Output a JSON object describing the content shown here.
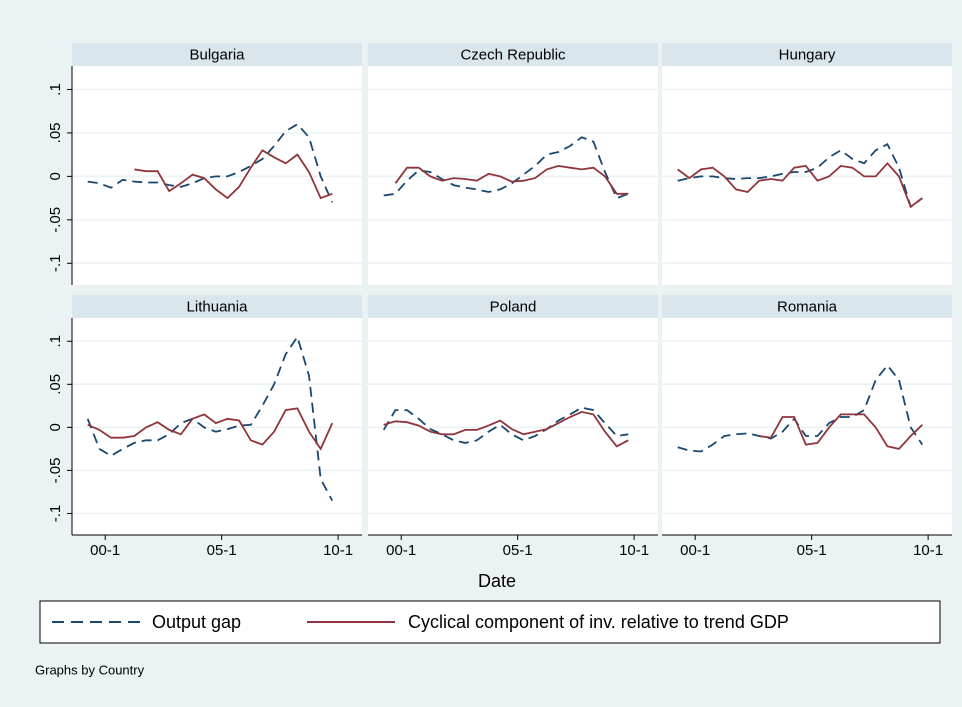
{
  "chart_data": [
    {
      "type": "line",
      "title": "Bulgaria",
      "x": [
        157,
        159,
        161,
        163,
        165,
        167,
        169,
        171,
        173,
        175,
        177,
        179,
        181,
        183,
        185,
        187,
        189,
        191,
        193,
        195,
        197,
        199
      ],
      "xlim": [
        154.3,
        204.1
      ],
      "xticks": [
        {
          "value": 160,
          "label": "00-1"
        },
        {
          "value": 180,
          "label": "05-1"
        },
        {
          "value": 200,
          "label": "10-1"
        }
      ],
      "ylim": [
        -0.125,
        0.127
      ],
      "yticks": [
        {
          "value": -0.1,
          "label": "-.1"
        },
        {
          "value": -0.05,
          "label": "-.05"
        },
        0,
        {
          "value": 0.05,
          "label": ".05"
        },
        {
          "value": 0.1,
          "label": ".1"
        }
      ],
      "grid": true,
      "series": [
        {
          "name": "Output gap",
          "color": "#1a476f",
          "dash": true,
          "values": [
            -0.006,
            -0.008,
            -0.013,
            -0.004,
            -0.006,
            -0.007,
            -0.007,
            -0.01,
            -0.012,
            -0.008,
            -0.002,
            0,
            0,
            0.005,
            0.012,
            0.02,
            0.035,
            0.052,
            0.06,
            0.045,
            0.0,
            -0.03
          ]
        },
        {
          "name": "Cyclical component of inv. relative to trend GDP",
          "color": "#90353b",
          "dash": false,
          "values": [
            null,
            null,
            null,
            null,
            0.008,
            0.006,
            0.006,
            -0.017,
            -0.008,
            0.002,
            -0.002,
            -0.015,
            -0.025,
            -0.012,
            0.01,
            0.03,
            0.022,
            0.015,
            0.025,
            0.005,
            -0.025,
            -0.02
          ]
        }
      ]
    },
    {
      "type": "line",
      "title": "Czech Republic",
      "x": [
        157,
        159,
        161,
        163,
        165,
        167,
        169,
        171,
        173,
        175,
        177,
        179,
        181,
        183,
        185,
        187,
        189,
        191,
        193,
        195,
        197,
        199
      ],
      "xlim": [
        154.3,
        204.1
      ],
      "xticks": [
        {
          "value": 160,
          "label": "00-1"
        },
        {
          "value": 180,
          "label": "05-1"
        },
        {
          "value": 200,
          "label": "10-1"
        }
      ],
      "ylim": [
        -0.125,
        0.127
      ],
      "yticks": [
        {
          "value": -0.1,
          "label": "-.1"
        },
        {
          "value": -0.05,
          "label": "-.05"
        },
        0,
        {
          "value": 0.05,
          "label": ".05"
        },
        {
          "value": 0.1,
          "label": ".1"
        }
      ],
      "grid": true,
      "series": [
        {
          "name": "Output gap",
          "color": "#1a476f",
          "dash": true,
          "values": [
            -0.022,
            -0.02,
            -0.005,
            0.007,
            0.005,
            -0.003,
            -0.01,
            -0.013,
            -0.015,
            -0.018,
            -0.015,
            -0.008,
            0.002,
            0.012,
            0.025,
            0.028,
            0.035,
            0.045,
            0.04,
            0.005,
            -0.025,
            -0.02
          ]
        },
        {
          "name": "Cyclical component of inv. relative to trend GDP",
          "color": "#90353b",
          "dash": false,
          "values": [
            null,
            -0.008,
            0.01,
            0.01,
            0.0,
            -0.005,
            -0.002,
            -0.003,
            -0.005,
            0.003,
            0.0,
            -0.006,
            -0.005,
            -0.002,
            0.008,
            0.012,
            0.01,
            0.008,
            0.01,
            0.0,
            -0.02,
            -0.02
          ]
        }
      ]
    },
    {
      "type": "line",
      "title": "Hungary",
      "x": [
        157,
        159,
        161,
        163,
        165,
        167,
        169,
        171,
        173,
        175,
        177,
        179,
        181,
        183,
        185,
        187,
        189,
        191,
        193,
        195,
        197,
        199
      ],
      "xlim": [
        154.3,
        204.1
      ],
      "xticks": [
        {
          "value": 160,
          "label": "00-1"
        },
        {
          "value": 180,
          "label": "05-1"
        },
        {
          "value": 200,
          "label": "10-1"
        }
      ],
      "ylim": [
        -0.125,
        0.127
      ],
      "yticks": [
        {
          "value": -0.1,
          "label": "-.1"
        },
        {
          "value": -0.05,
          "label": "-.05"
        },
        0,
        {
          "value": 0.05,
          "label": ".05"
        },
        {
          "value": 0.1,
          "label": ".1"
        }
      ],
      "grid": true,
      "series": [
        {
          "name": "Output gap",
          "color": "#1a476f",
          "dash": true,
          "values": [
            -0.005,
            -0.002,
            0,
            0,
            -0.002,
            -0.003,
            -0.002,
            -0.002,
            0,
            0.003,
            0.005,
            0.005,
            0.01,
            0.022,
            0.03,
            0.02,
            0.015,
            0.03,
            0.037,
            0.01,
            -0.035,
            -0.025
          ]
        },
        {
          "name": "Cyclical component of inv. relative to trend GDP",
          "color": "#90353b",
          "dash": false,
          "values": [
            0.008,
            -0.002,
            0.008,
            0.01,
            0.0,
            -0.015,
            -0.018,
            -0.005,
            -0.003,
            -0.005,
            0.01,
            0.012,
            -0.005,
            0.0,
            0.012,
            0.01,
            0.0,
            0.0,
            0.015,
            0.0,
            -0.035,
            -0.025
          ]
        }
      ]
    },
    {
      "type": "line",
      "title": "Lithuania",
      "x": [
        157,
        159,
        161,
        163,
        165,
        167,
        169,
        171,
        173,
        175,
        177,
        179,
        181,
        183,
        185,
        187,
        189,
        191,
        193,
        195,
        197,
        199
      ],
      "xlim": [
        154.3,
        204.1
      ],
      "xticks": [
        {
          "value": 160,
          "label": "00-1"
        },
        {
          "value": 180,
          "label": "05-1"
        },
        {
          "value": 200,
          "label": "10-1"
        }
      ],
      "ylim": [
        -0.125,
        0.127
      ],
      "yticks": [
        {
          "value": -0.1,
          "label": "-.1"
        },
        {
          "value": -0.05,
          "label": "-.05"
        },
        0,
        {
          "value": 0.05,
          "label": ".05"
        },
        {
          "value": 0.1,
          "label": ".1"
        }
      ],
      "grid": true,
      "series": [
        {
          "name": "Output gap",
          "color": "#1a476f",
          "dash": true,
          "values": [
            0.01,
            -0.025,
            -0.033,
            -0.025,
            -0.018,
            -0.015,
            -0.015,
            -0.008,
            0.005,
            0.01,
            0.0,
            -0.005,
            -0.002,
            0.002,
            0.003,
            0.025,
            0.05,
            0.085,
            0.105,
            0.06,
            -0.06,
            -0.085
          ]
        },
        {
          "name": "Cyclical component of inv. relative to trend GDP",
          "color": "#90353b",
          "dash": false,
          "values": [
            0.003,
            -0.003,
            -0.012,
            -0.012,
            -0.01,
            0.0,
            0.006,
            -0.003,
            -0.008,
            0.01,
            0.015,
            0.005,
            0.01,
            0.008,
            -0.015,
            -0.02,
            -0.005,
            0.02,
            0.022,
            -0.005,
            -0.025,
            0.005
          ]
        }
      ]
    },
    {
      "type": "line",
      "title": "Poland",
      "x": [
        157,
        159,
        161,
        163,
        165,
        167,
        169,
        171,
        173,
        175,
        177,
        179,
        181,
        183,
        185,
        187,
        189,
        191,
        193,
        195,
        197,
        199
      ],
      "xlim": [
        154.3,
        204.1
      ],
      "xticks": [
        {
          "value": 160,
          "label": "00-1"
        },
        {
          "value": 180,
          "label": "05-1"
        },
        {
          "value": 200,
          "label": "10-1"
        }
      ],
      "ylim": [
        -0.125,
        0.127
      ],
      "yticks": [
        {
          "value": -0.1,
          "label": "-.1"
        },
        {
          "value": -0.05,
          "label": "-.05"
        },
        0,
        {
          "value": 0.05,
          "label": ".05"
        },
        {
          "value": 0.1,
          "label": ".1"
        }
      ],
      "grid": true,
      "series": [
        {
          "name": "Output gap",
          "color": "#1a476f",
          "dash": true,
          "values": [
            -0.003,
            0.02,
            0.02,
            0.01,
            -0.002,
            -0.008,
            -0.015,
            -0.018,
            -0.015,
            -0.005,
            0.003,
            -0.008,
            -0.015,
            -0.01,
            -0.002,
            0.008,
            0.015,
            0.023,
            0.02,
            0.005,
            -0.01,
            -0.008
          ]
        },
        {
          "name": "Cyclical component of inv. relative to trend GDP",
          "color": "#90353b",
          "dash": false,
          "values": [
            0.003,
            0.007,
            0.006,
            0.002,
            -0.005,
            -0.008,
            -0.008,
            -0.003,
            -0.003,
            0.002,
            0.008,
            -0.002,
            -0.008,
            -0.005,
            -0.002,
            0.005,
            0.012,
            0.018,
            0.015,
            -0.005,
            -0.022,
            -0.015
          ]
        }
      ]
    },
    {
      "type": "line",
      "title": "Romania",
      "x": [
        157,
        159,
        161,
        163,
        165,
        167,
        169,
        171,
        173,
        175,
        177,
        179,
        181,
        183,
        185,
        187,
        189,
        191,
        193,
        195,
        197,
        199
      ],
      "xlim": [
        154.3,
        204.1
      ],
      "xticks": [
        {
          "value": 160,
          "label": "00-1"
        },
        {
          "value": 180,
          "label": "05-1"
        },
        {
          "value": 200,
          "label": "10-1"
        }
      ],
      "ylim": [
        -0.125,
        0.127
      ],
      "yticks": [
        {
          "value": -0.1,
          "label": "-.1"
        },
        {
          "value": -0.05,
          "label": "-.05"
        },
        0,
        {
          "value": 0.05,
          "label": ".05"
        },
        {
          "value": 0.1,
          "label": ".1"
        }
      ],
      "grid": true,
      "series": [
        {
          "name": "Output gap",
          "color": "#1a476f",
          "dash": true,
          "values": [
            -0.023,
            -0.027,
            -0.028,
            -0.02,
            -0.01,
            -0.008,
            -0.007,
            -0.01,
            -0.013,
            -0.005,
            0.01,
            -0.01,
            -0.01,
            0.005,
            0.012,
            0.012,
            0.02,
            0.055,
            0.072,
            0.055,
            0.0,
            -0.02
          ]
        },
        {
          "name": "Cyclical component of inv. relative to trend GDP",
          "color": "#90353b",
          "dash": false,
          "values": [
            null,
            null,
            null,
            null,
            null,
            null,
            null,
            -0.01,
            -0.012,
            0.012,
            0.012,
            -0.02,
            -0.018,
            0.0,
            0.015,
            0.015,
            0.015,
            0.0,
            -0.022,
            -0.025,
            -0.01,
            0.003
          ]
        }
      ]
    }
  ],
  "x_label": "Date",
  "note": "Graphs by Country"
}
